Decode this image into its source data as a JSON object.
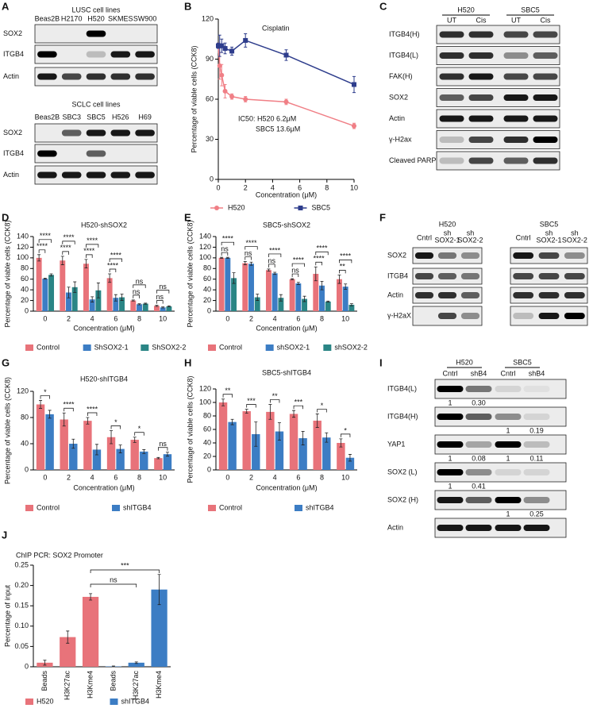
{
  "panel_letters": [
    "A",
    "B",
    "C",
    "D",
    "E",
    "F",
    "G",
    "H",
    "I",
    "J"
  ],
  "blots": {
    "A": {
      "groups": [
        {
          "title": "LUSC cell lines",
          "lanes": [
            "Beas2B",
            "H2170",
            "H520",
            "SKMES",
            "SW900"
          ],
          "rows": [
            "SOX2",
            "ITGB4",
            "Actin"
          ]
        },
        {
          "title": "SCLC cell lines",
          "lanes": [
            "Beas2B",
            "SBC3",
            "SBC5",
            "H526",
            "H69"
          ],
          "rows": [
            "SOX2",
            "ITGB4",
            "Actin"
          ]
        }
      ]
    },
    "C": {
      "groups": [
        "H520",
        "SBC5"
      ],
      "lanes": [
        "UT",
        "Cis",
        "UT",
        "Cis"
      ],
      "rows": [
        "ITGB4(H)",
        "ITGB4(L)",
        "FAK(H)",
        "SOX2",
        "Actin",
        "γ-H2ax",
        "Cleaved PARP"
      ]
    },
    "F": {
      "panels": [
        {
          "title": "H520",
          "lanes": [
            [
              "Cntrl"
            ],
            [
              "sh",
              "SOX2-1"
            ],
            [
              "sh",
              "SOX2-2"
            ]
          ],
          "rows": [
            "SOX2",
            "ITGB4",
            "Actin",
            "γ-H2aX"
          ]
        },
        {
          "title": "SBC5",
          "lanes": [
            [
              "Cntrl"
            ],
            [
              "sh",
              "SOX2-1"
            ],
            [
              "sh",
              "SOX2-2"
            ]
          ]
        }
      ]
    },
    "I": {
      "groups": [
        "H520",
        "SBC5"
      ],
      "lanes": [
        "Cntrl",
        "shB4",
        "Cntrl",
        "shB4"
      ],
      "rows": [
        {
          "label": "ITGB4(L)",
          "quant": [
            "1",
            "0.30",
            null,
            null
          ]
        },
        {
          "label": "ITGB4(H)",
          "quant": [
            null,
            null,
            "1",
            "0.19"
          ]
        },
        {
          "label": "YAP1",
          "quant": [
            "1",
            "0.08",
            "1",
            "0.11"
          ]
        },
        {
          "label": "SOX2 (L)",
          "quant": [
            "1",
            "0.41",
            null,
            null
          ]
        },
        {
          "label": "SOX2 (H)",
          "quant": [
            null,
            null,
            "1",
            "0.25"
          ]
        },
        {
          "label": "Actin"
        }
      ]
    }
  },
  "chart_data": [
    {
      "type": "line",
      "title": "Cisplatin",
      "x_label": "Concentration (μM)",
      "y_label": "Percentage of viable cells (CCK8)",
      "annotations": [
        "IC50: H520 6.2μM",
        "SBC5 13.6μM"
      ],
      "xlim": [
        0,
        10
      ],
      "xticks": [
        0,
        2,
        4,
        6,
        8,
        10
      ],
      "ylim": [
        0,
        120
      ],
      "yticks": [
        0,
        30,
        60,
        90,
        120
      ],
      "series": [
        {
          "name": "H520",
          "color": "#f07f86",
          "marker": "circle",
          "x": [
            0,
            0.1,
            0.25,
            0.5,
            1,
            2,
            5,
            10
          ],
          "values": [
            100,
            85,
            78,
            66,
            62,
            60,
            58,
            40
          ],
          "errors": [
            2,
            10,
            8,
            5,
            2,
            2,
            2,
            2
          ]
        },
        {
          "name": "SBC5",
          "color": "#2e3d8c",
          "marker": "square",
          "x": [
            0,
            0.1,
            0.25,
            0.5,
            1,
            2,
            5,
            10
          ],
          "values": [
            100,
            100,
            100,
            98,
            96,
            104,
            93,
            71
          ],
          "errors": [
            2,
            8,
            5,
            4,
            3,
            5,
            4,
            6
          ]
        }
      ]
    },
    {
      "type": "bar",
      "title": "H520-shSOX2",
      "x_label": "Concentration (μM)",
      "y_label": "Percentage of viable cells (CCK8)",
      "categories": [
        0,
        2,
        4,
        6,
        8,
        10
      ],
      "ylim": [
        0,
        140
      ],
      "yticks": [
        0,
        20,
        40,
        60,
        80,
        100,
        120,
        140
      ],
      "series": [
        {
          "name": "Control",
          "color": "#e8737a",
          "values": [
            100,
            95,
            89,
            62,
            20,
            10
          ],
          "errors": [
            6,
            8,
            8,
            8,
            1,
            1
          ]
        },
        {
          "name": "ShSOX2-1",
          "color": "#3c7dc4",
          "values": [
            61,
            35,
            22,
            25,
            13,
            7
          ],
          "errors": [
            1,
            10,
            5,
            6,
            1,
            1
          ]
        },
        {
          "name": "ShSOX2-2",
          "color": "#2a8585",
          "values": [
            68,
            45,
            39,
            26,
            14,
            9
          ],
          "errors": [
            2,
            10,
            14,
            6,
            1,
            1
          ]
        }
      ],
      "significance": [
        [
          "****",
          "****"
        ],
        [
          "****",
          "****"
        ],
        [
          "****",
          "****"
        ],
        [
          "****",
          "****"
        ],
        [
          "ns",
          "ns"
        ],
        [
          "ns",
          "ns"
        ]
      ]
    },
    {
      "type": "bar",
      "title": "SBC5-shSOX2",
      "x_label": "Concentration (μM)",
      "y_label": "Percentage of viable cells (CCK8)",
      "categories": [
        0,
        2,
        4,
        6,
        8,
        10
      ],
      "ylim": [
        0,
        140
      ],
      "yticks": [
        0,
        20,
        40,
        60,
        80,
        100,
        120,
        140
      ],
      "series": [
        {
          "name": "Control",
          "color": "#e8737a",
          "values": [
            100,
            90,
            77,
            60,
            70,
            60
          ],
          "errors": [
            1,
            3,
            2,
            1,
            13,
            8
          ]
        },
        {
          "name": "shSOX2-1",
          "color": "#3c7dc4",
          "values": [
            100,
            89,
            71,
            52,
            48,
            46
          ],
          "errors": [
            1,
            3,
            2,
            2,
            8,
            5
          ]
        },
        {
          "name": "shSOX2-2",
          "color": "#2a8585",
          "values": [
            62,
            26,
            25,
            23,
            18,
            12
          ],
          "errors": [
            10,
            6,
            6,
            5,
            1,
            2
          ]
        }
      ],
      "significance": [
        [
          "****",
          "ns"
        ],
        [
          "****",
          "ns"
        ],
        [
          "****",
          "ns"
        ],
        [
          "****",
          "ns"
        ],
        [
          "****",
          "****"
        ],
        [
          "****",
          "**"
        ]
      ]
    },
    {
      "type": "bar",
      "title": "H520-shITGB4",
      "x_label": "Concentration (μM)",
      "y_label": "Percentage of viable cells (CCK8)",
      "categories": [
        0,
        2,
        4,
        6,
        8,
        10
      ],
      "ylim": [
        0,
        120
      ],
      "yticks": [
        0,
        40,
        80,
        120
      ],
      "series": [
        {
          "name": "Control",
          "color": "#e8737a",
          "values": [
            100,
            77,
            75,
            50,
            46,
            18
          ],
          "errors": [
            6,
            10,
            5,
            10,
            4,
            1
          ]
        },
        {
          "name": "shITGB4",
          "color": "#3c7dc4",
          "values": [
            85,
            40,
            31,
            32,
            28,
            24
          ],
          "errors": [
            6,
            7,
            8,
            6,
            3,
            3
          ]
        }
      ],
      "significance": [
        [
          "*"
        ],
        [
          "****"
        ],
        [
          "****"
        ],
        [
          "*"
        ],
        [
          "*"
        ],
        [
          "ns"
        ]
      ]
    },
    {
      "type": "bar",
      "title": "SBC5-shITGB4",
      "x_label": "Concentration (μM)",
      "y_label": "Percentage of viable cells (CCK8)",
      "categories": [
        0,
        2,
        4,
        6,
        8,
        10
      ],
      "ylim": [
        0,
        120
      ],
      "yticks": [
        0,
        20,
        40,
        60,
        80,
        100,
        120
      ],
      "series": [
        {
          "name": "Control",
          "color": "#e8737a",
          "values": [
            100,
            87,
            86,
            83,
            73,
            40
          ],
          "errors": [
            5,
            3,
            11,
            5,
            10,
            6
          ]
        },
        {
          "name": "shITGB4",
          "color": "#3c7dc4",
          "values": [
            71,
            53,
            57,
            47,
            48,
            18
          ],
          "errors": [
            4,
            18,
            13,
            10,
            7,
            5
          ]
        }
      ],
      "significance": [
        [
          "**"
        ],
        [
          "***"
        ],
        [
          "**"
        ],
        [
          "***"
        ],
        [
          "*"
        ],
        [
          "*"
        ]
      ]
    },
    {
      "type": "bar",
      "title": "ChIP PCR: SOX2 Promoter",
      "y_label": "Percentage of input",
      "categories": [
        "Beads",
        "H3K27ac",
        "H3Kme4",
        "Beads",
        "H3K27ac",
        "H3Kme4"
      ],
      "ylim": [
        0,
        0.25
      ],
      "yticks": [
        0,
        0.05,
        {
          "value": 0.1,
          "label": "0.10"
        },
        0.15,
        {
          "value": 0.2,
          "label": "0.20"
        },
        0.25
      ],
      "series": [
        {
          "name": "H520",
          "color": "#e8737a",
          "values": [
            0.01,
            0.073,
            0.172,
            null,
            null,
            null
          ],
          "errors": [
            0.006,
            0.015,
            0.008,
            null,
            null,
            null
          ]
        },
        {
          "name": "shITGB4",
          "color": "#3c7dc4",
          "values": [
            null,
            null,
            null,
            0.001,
            0.01,
            0.19
          ],
          "errors": [
            null,
            null,
            null,
            0.001,
            0.002,
            0.037
          ]
        }
      ],
      "comparisons": [
        "***",
        "ns"
      ]
    }
  ]
}
